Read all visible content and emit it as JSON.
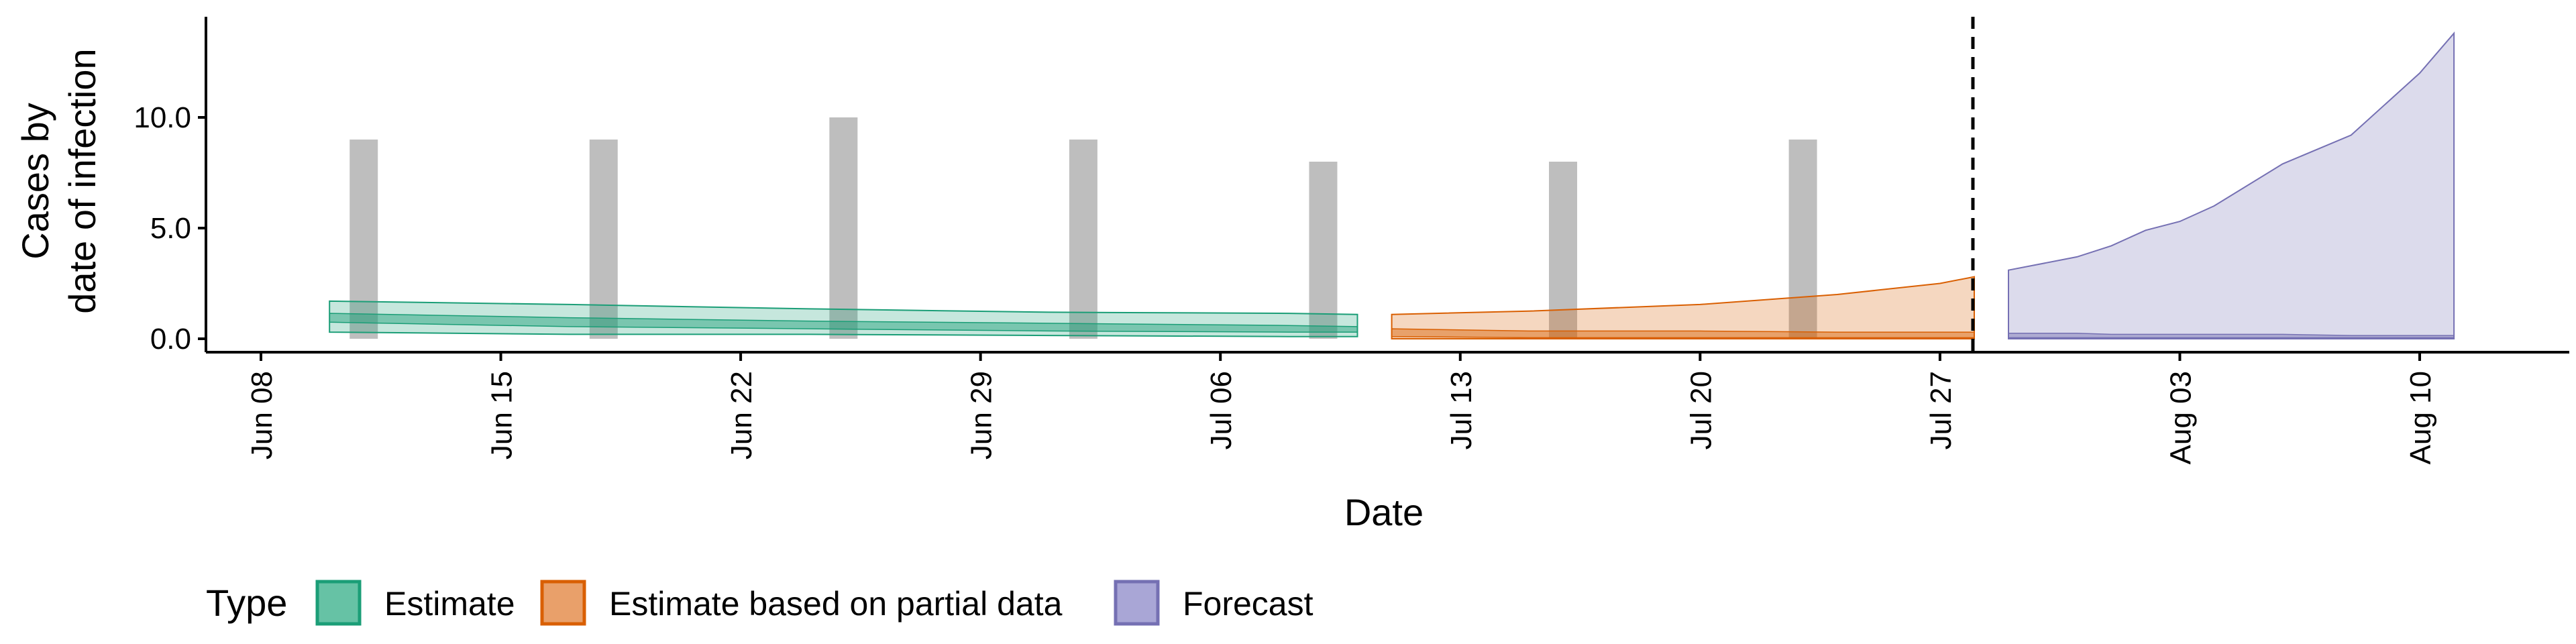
{
  "chart_data": {
    "type": "area",
    "xlabel": "Date",
    "ylabel": [
      "Cases by",
      "date of infection"
    ],
    "x_range": [
      "2021-06-08",
      "2021-08-13"
    ],
    "ylim": [
      -0.5,
      14
    ],
    "y_ticks": [
      0,
      5,
      10
    ],
    "y_tick_labels": [
      "0.0",
      "5.0",
      "10.0"
    ],
    "x_ticks": [
      "2021-06-08",
      "2021-06-15",
      "2021-06-22",
      "2021-06-29",
      "2021-07-06",
      "2021-07-13",
      "2021-07-20",
      "2021-07-27",
      "2021-08-03",
      "2021-08-10"
    ],
    "x_tick_labels": [
      "Jun 08",
      "Jun 15",
      "Jun 22",
      "Jun 29",
      "Jul 06",
      "Jul 13",
      "Jul 20",
      "Jul 27",
      "Aug 03",
      "Aug 10"
    ],
    "observed_cases": [
      {
        "date": "2021-06-11",
        "value": 9
      },
      {
        "date": "2021-06-18",
        "value": 9
      },
      {
        "date": "2021-06-25",
        "value": 10
      },
      {
        "date": "2021-07-02",
        "value": 9
      },
      {
        "date": "2021-07-09",
        "value": 8
      },
      {
        "date": "2021-07-16",
        "value": 8
      },
      {
        "date": "2021-07-23",
        "value": 9
      }
    ],
    "forecast_start": "2021-07-28",
    "series": [
      {
        "name": "Estimate",
        "color": "#1b9e77",
        "x": [
          "2021-06-10",
          "2021-06-17",
          "2021-06-24",
          "2021-07-01",
          "2021-07-08",
          "2021-07-10"
        ],
        "lower90": [
          0.3,
          0.2,
          0.2,
          0.15,
          0.1,
          0.1
        ],
        "upper90": [
          1.7,
          1.55,
          1.35,
          1.2,
          1.15,
          1.1
        ],
        "lower50": [
          0.75,
          0.55,
          0.45,
          0.35,
          0.3,
          0.3
        ],
        "upper50": [
          1.15,
          0.95,
          0.8,
          0.7,
          0.6,
          0.55
        ]
      },
      {
        "name": "Estimate based on partial data",
        "color": "#d95f02",
        "x": [
          "2021-07-11",
          "2021-07-15",
          "2021-07-20",
          "2021-07-24",
          "2021-07-27",
          "2021-07-28"
        ],
        "lower90": [
          0.0,
          0.0,
          0.0,
          0.0,
          0.0,
          0.0
        ],
        "upper90": [
          1.1,
          1.25,
          1.55,
          2.0,
          2.5,
          2.8
        ],
        "lower50": [
          0.1,
          0.05,
          0.05,
          0.05,
          0.05,
          0.05
        ],
        "upper50": [
          0.45,
          0.35,
          0.35,
          0.3,
          0.3,
          0.3
        ]
      },
      {
        "name": "Forecast",
        "color": "#7570b3",
        "x": [
          "2021-07-29",
          "2021-07-31",
          "2021-08-01",
          "2021-08-02",
          "2021-08-03",
          "2021-08-04",
          "2021-08-06",
          "2021-08-08",
          "2021-08-10",
          "2021-08-11"
        ],
        "lower90": [
          0.0,
          0.0,
          0.0,
          0.0,
          0.0,
          0.0,
          0.0,
          0.0,
          0.0,
          0.0
        ],
        "upper90": [
          3.1,
          3.7,
          4.2,
          4.9,
          5.3,
          6.0,
          7.9,
          9.2,
          12.0,
          13.8
        ],
        "lower50": [
          0.05,
          0.05,
          0.05,
          0.05,
          0.05,
          0.05,
          0.05,
          0.05,
          0.05,
          0.05
        ],
        "upper50": [
          0.25,
          0.25,
          0.2,
          0.2,
          0.2,
          0.2,
          0.2,
          0.15,
          0.15,
          0.15
        ]
      }
    ],
    "legend": {
      "title": "Type",
      "position": "bottom-left",
      "items": [
        {
          "label": "Estimate",
          "fill": "#66c2a5",
          "stroke": "#1b9e77"
        },
        {
          "label": "Estimate based on partial data",
          "fill": "#e9a06a",
          "stroke": "#d95f02"
        },
        {
          "label": "Forecast",
          "fill": "#a9a6d6",
          "stroke": "#7570b3"
        }
      ]
    },
    "grid": false
  }
}
